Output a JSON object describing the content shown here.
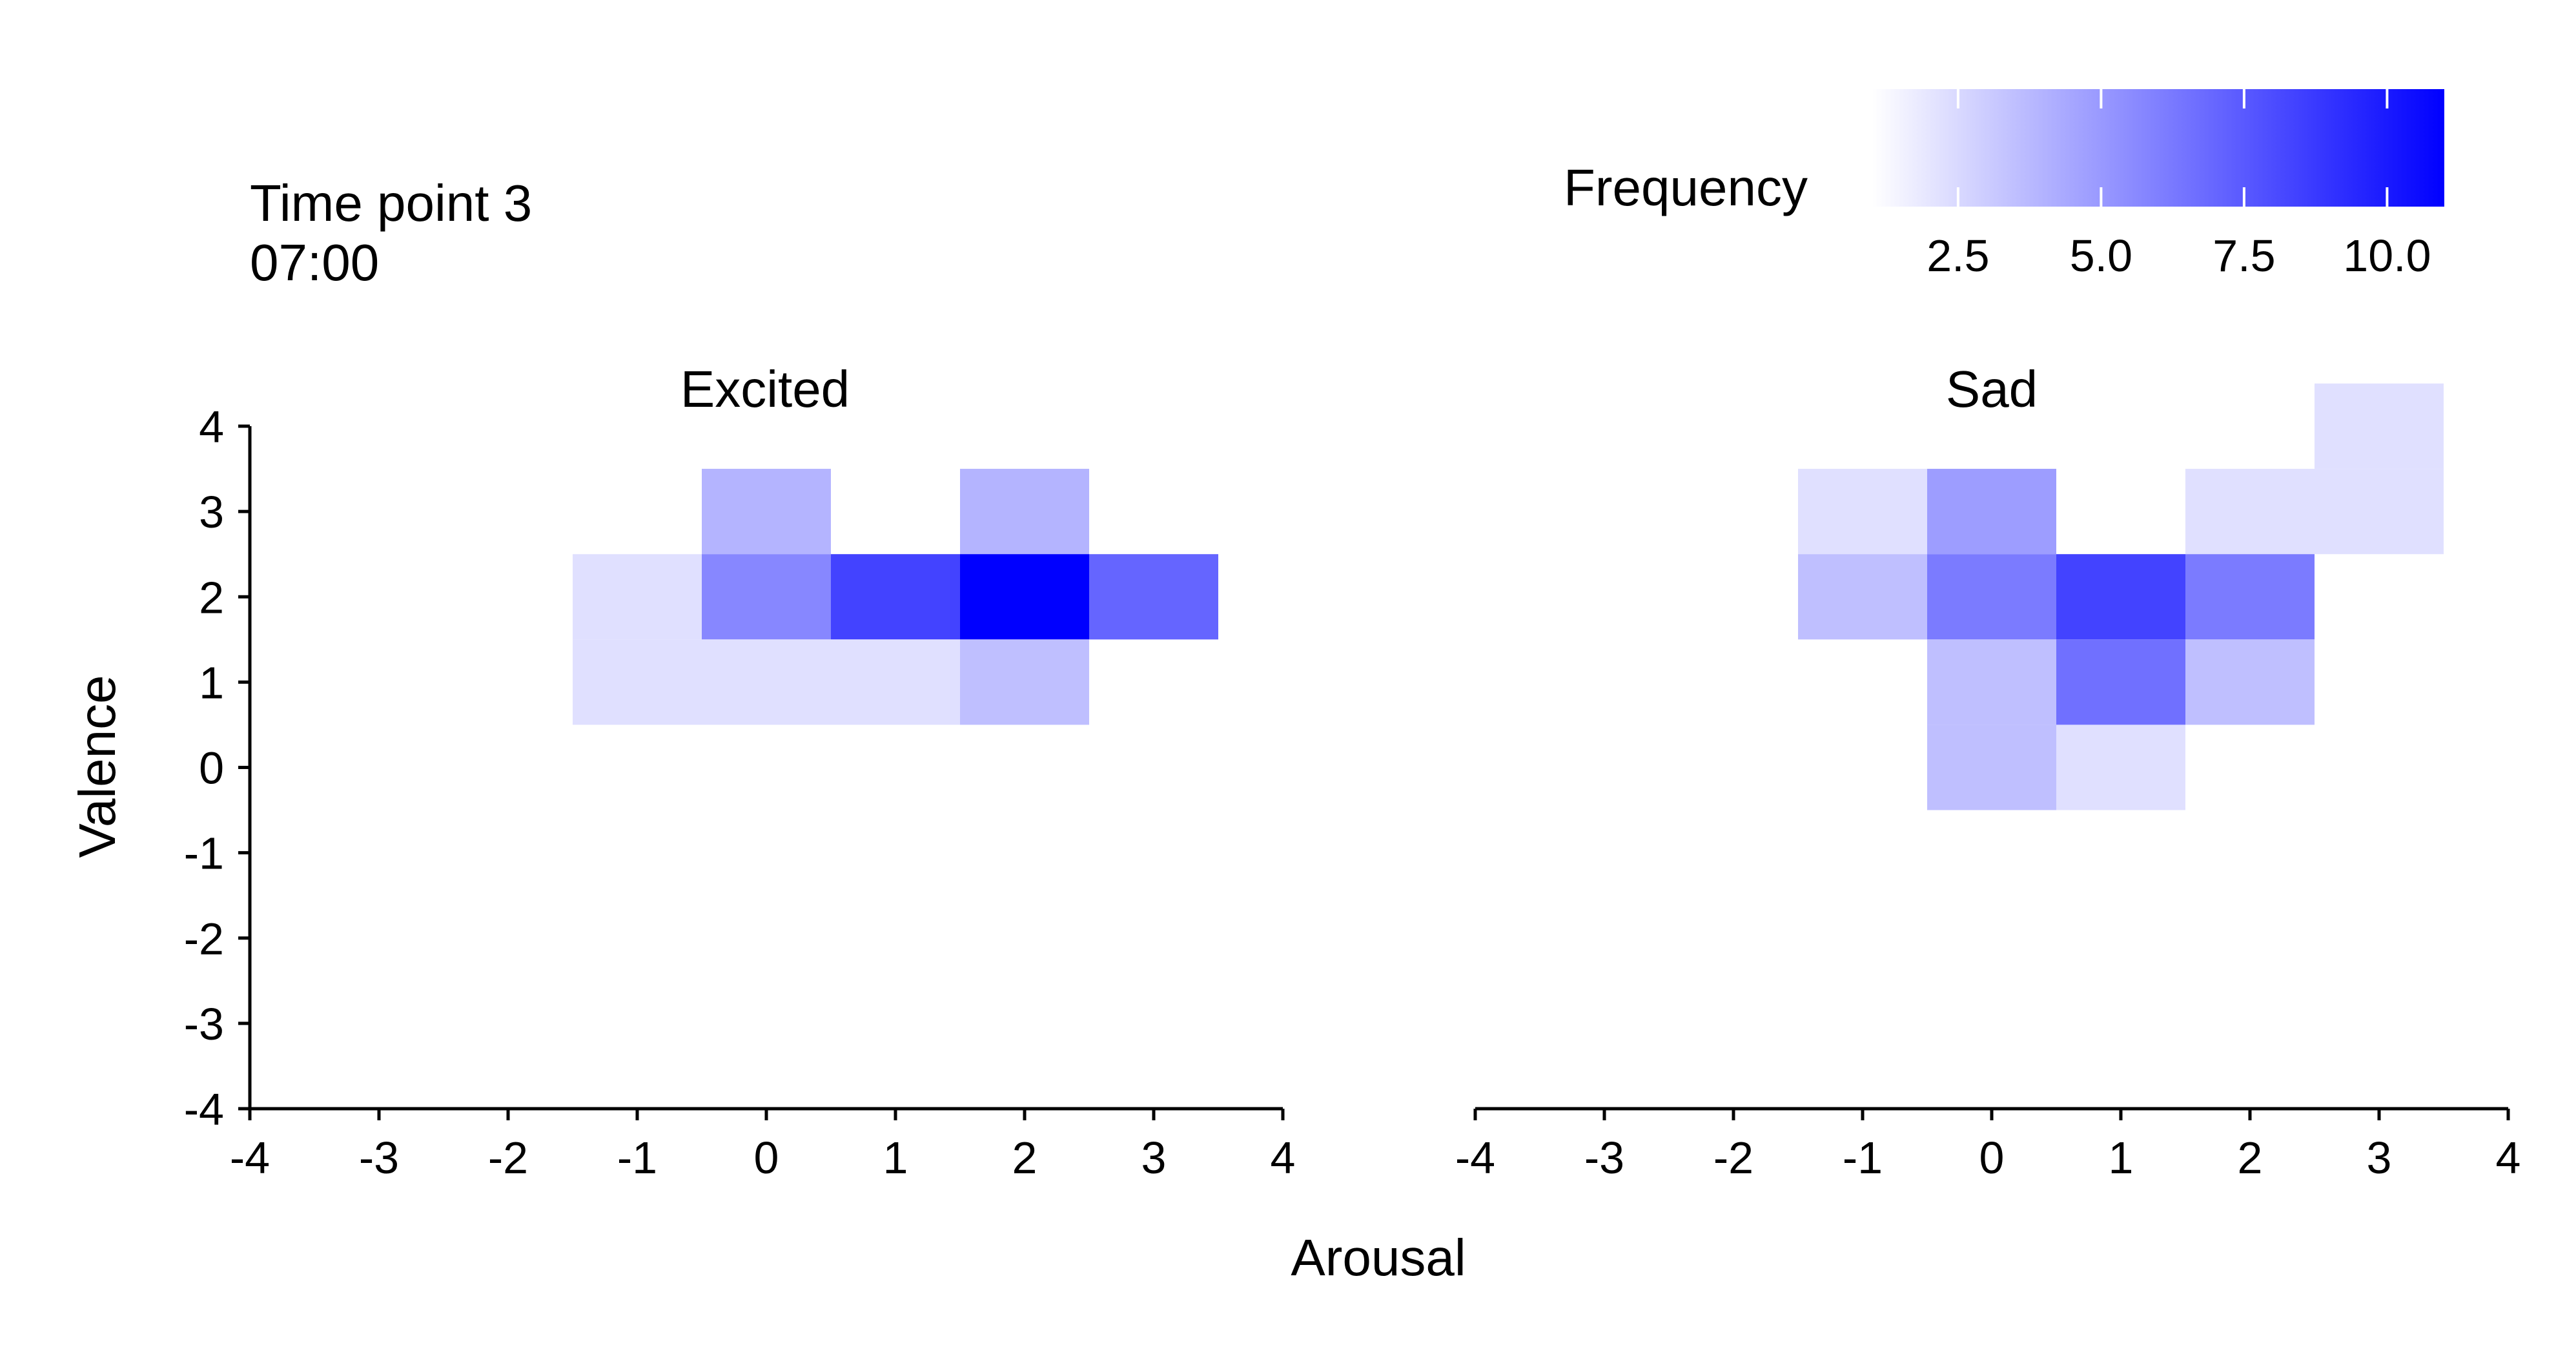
{
  "annotation": {
    "time_point": "Time point 3",
    "time": "07:00"
  },
  "legend": {
    "title": "Frequency",
    "ticks": [
      "2.5",
      "5.0",
      "7.5",
      "10.0"
    ],
    "tick_values": [
      2.5,
      5.0,
      7.5,
      10.0
    ],
    "range": [
      1,
      11
    ],
    "color_low": "#ffffff",
    "color_high": "#0000ff",
    "placement": "top-right"
  },
  "chart_data": {
    "type": "heatmap",
    "xlabel": "Arousal",
    "ylabel": "Valence",
    "xlim": [
      -4,
      4
    ],
    "ylim": [
      -4,
      4
    ],
    "x_ticks": [
      "-4",
      "-3",
      "-2",
      "-1",
      "0",
      "1",
      "2",
      "3",
      "4"
    ],
    "y_ticks": [
      "4",
      "3",
      "2",
      "1",
      "0",
      "-1",
      "-2",
      "-3",
      "-4"
    ],
    "grid": false,
    "panels": [
      {
        "title": "Excited",
        "cells": [
          {
            "x": 0,
            "y": 3,
            "value": 3
          },
          {
            "x": 2,
            "y": 3,
            "value": 3
          },
          {
            "x": -1,
            "y": 2,
            "value": 1
          },
          {
            "x": 0,
            "y": 2,
            "value": 5
          },
          {
            "x": 1,
            "y": 2,
            "value": 8
          },
          {
            "x": 2,
            "y": 2,
            "value": 11
          },
          {
            "x": 3,
            "y": 2,
            "value": 6.5
          },
          {
            "x": -1,
            "y": 1,
            "value": 1
          },
          {
            "x": 0,
            "y": 1,
            "value": 1
          },
          {
            "x": 1,
            "y": 1,
            "value": 1
          },
          {
            "x": 2,
            "y": 1,
            "value": 2.5
          }
        ]
      },
      {
        "title": "Sad",
        "cells": [
          {
            "x": 3,
            "y": 4,
            "value": 1
          },
          {
            "x": -1,
            "y": 3,
            "value": 1
          },
          {
            "x": 0,
            "y": 3,
            "value": 4
          },
          {
            "x": 2,
            "y": 3,
            "value": 1
          },
          {
            "x": 3,
            "y": 3,
            "value": 1
          },
          {
            "x": -1,
            "y": 2,
            "value": 2.5
          },
          {
            "x": 0,
            "y": 2,
            "value": 5.5
          },
          {
            "x": 1,
            "y": 2,
            "value": 8
          },
          {
            "x": 2,
            "y": 2,
            "value": 5.5
          },
          {
            "x": 0,
            "y": 1,
            "value": 2.5
          },
          {
            "x": 1,
            "y": 1,
            "value": 6
          },
          {
            "x": 2,
            "y": 1,
            "value": 2.5
          },
          {
            "x": 0,
            "y": 0,
            "value": 2.5
          },
          {
            "x": 1,
            "y": 0,
            "value": 1
          }
        ]
      }
    ]
  }
}
